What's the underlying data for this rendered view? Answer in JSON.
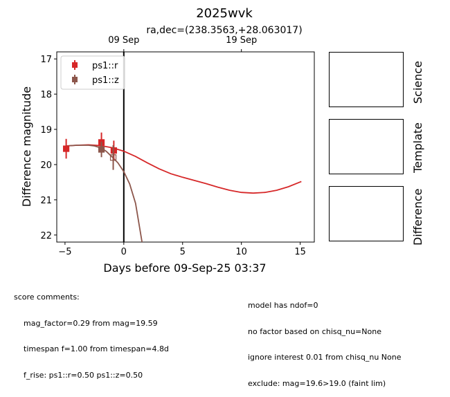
{
  "chart_data": {
    "type": "scatter",
    "title": "2025wvk",
    "subtitle": "ra,dec=(238.3563,+28.063017)",
    "xlabel": "Days before 09-Sep-25 03:37",
    "ylabel": "Difference magnitude",
    "xlim": [
      -5.7,
      16.2
    ],
    "ylim": [
      22.2,
      16.8
    ],
    "invert_y": true,
    "x_ticks": [
      {
        "value": -5,
        "label": "−5"
      },
      {
        "value": 0,
        "label": "0"
      },
      {
        "value": 5,
        "label": "5"
      },
      {
        "value": 10,
        "label": "10"
      },
      {
        "value": 15,
        "label": "15"
      }
    ],
    "y_ticks": [
      {
        "value": 17,
        "label": "17"
      },
      {
        "value": 18,
        "label": "18"
      },
      {
        "value": 19,
        "label": "19"
      },
      {
        "value": 20,
        "label": "20"
      },
      {
        "value": 21,
        "label": "21"
      },
      {
        "value": 22,
        "label": "22"
      }
    ],
    "top_ticks": [
      {
        "value": 0,
        "label": "09 Sep"
      },
      {
        "value": 10,
        "label": "19 Sep"
      }
    ],
    "vline_x": 0,
    "grid": false,
    "legend_position": "top-left",
    "series": [
      {
        "name": "ps1::r",
        "color": "#d62728",
        "points": [
          {
            "x": -4.9,
            "y": 19.55,
            "err": 0.28,
            "filled": true
          },
          {
            "x": -1.9,
            "y": 19.37,
            "err": 0.28,
            "filled": true
          },
          {
            "x": -0.85,
            "y": 19.6,
            "err": 0.28,
            "filled": true
          }
        ],
        "model": {
          "x": [
            -4.9,
            -4.0,
            -3.0,
            -2.0,
            -1.0,
            0.0,
            1.0,
            2.0,
            3.0,
            4.0,
            5.0,
            6.0,
            7.0,
            8.0,
            9.0,
            10.0,
            11.0,
            12.0,
            13.0,
            14.0,
            15.1
          ],
          "y": [
            19.47,
            19.45,
            19.44,
            19.46,
            19.52,
            19.62,
            19.77,
            19.95,
            20.12,
            20.26,
            20.36,
            20.45,
            20.54,
            20.64,
            20.73,
            20.79,
            20.81,
            20.79,
            20.73,
            20.63,
            20.48
          ]
        }
      },
      {
        "name": "ps1::z",
        "color": "#8c564b",
        "points": [
          {
            "x": -1.9,
            "y": 19.57,
            "err": 0.22,
            "filled": true
          },
          {
            "x": -0.9,
            "y": 19.8,
            "err": 0.35,
            "filled": false
          }
        ],
        "model": {
          "x": [
            -4.9,
            -4.0,
            -3.0,
            -2.5,
            -2.0,
            -1.5,
            -1.0,
            -0.5,
            0.0,
            0.5,
            1.0,
            1.3,
            1.6
          ],
          "y": [
            19.47,
            19.45,
            19.45,
            19.47,
            19.52,
            19.62,
            19.78,
            19.95,
            20.2,
            20.55,
            21.1,
            21.7,
            22.3
          ]
        }
      }
    ]
  },
  "stamps": {
    "science": "Science",
    "template": "Template",
    "difference": "Difference"
  },
  "comments": {
    "header": "score comments:",
    "left": [
      "mag_factor=0.29 from mag=19.59",
      "timespan f=1.00 from timespan=4.8d",
      "f_rise: ps1::r=0.50 ps1::z=0.50"
    ],
    "right": [
      "model has ndof=0",
      "no factor based on chisq_nu=None",
      "ignore interest 0.01 from chisq_nu None",
      "exclude: mag=19.6>19.0 (faint lim)"
    ]
  }
}
